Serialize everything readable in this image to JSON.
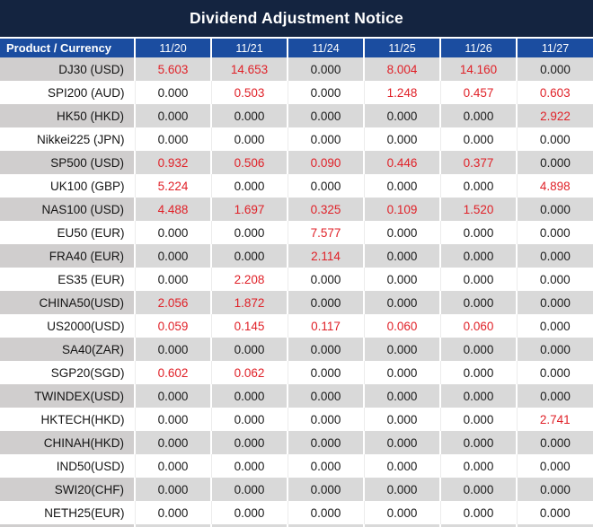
{
  "title": "Dividend Adjustment Notice",
  "colors": {
    "title_bar": "#142440",
    "header_row": "#1b4da0",
    "stripe_row": "#d9d9d9",
    "stripe_label_cell": "#d0cece",
    "value_nonzero": "#e02128",
    "value_zero": "#1a1a1a"
  },
  "chart_data": {
    "type": "table",
    "title": "Dividend Adjustment Notice",
    "columns": [
      "Product / Currency",
      "11/20",
      "11/21",
      "11/24",
      "11/25",
      "11/26",
      "11/27"
    ],
    "rows": [
      {
        "product": "DJ30 (USD)",
        "values": [
          "5.603",
          "14.653",
          "0.000",
          "8.004",
          "14.160",
          "0.000"
        ]
      },
      {
        "product": "SPI200 (AUD)",
        "values": [
          "0.000",
          "0.503",
          "0.000",
          "1.248",
          "0.457",
          "0.603"
        ]
      },
      {
        "product": "HK50 (HKD)",
        "values": [
          "0.000",
          "0.000",
          "0.000",
          "0.000",
          "0.000",
          "2.922"
        ]
      },
      {
        "product": "Nikkei225 (JPN)",
        "values": [
          "0.000",
          "0.000",
          "0.000",
          "0.000",
          "0.000",
          "0.000"
        ]
      },
      {
        "product": "SP500 (USD)",
        "values": [
          "0.932",
          "0.506",
          "0.090",
          "0.446",
          "0.377",
          "0.000"
        ]
      },
      {
        "product": "UK100 (GBP)",
        "values": [
          "5.224",
          "0.000",
          "0.000",
          "0.000",
          "0.000",
          "4.898"
        ]
      },
      {
        "product": "NAS100 (USD)",
        "values": [
          "4.488",
          "1.697",
          "0.325",
          "0.109",
          "1.520",
          "0.000"
        ]
      },
      {
        "product": "EU50 (EUR)",
        "values": [
          "0.000",
          "0.000",
          "7.577",
          "0.000",
          "0.000",
          "0.000"
        ]
      },
      {
        "product": "FRA40 (EUR)",
        "values": [
          "0.000",
          "0.000",
          "2.114",
          "0.000",
          "0.000",
          "0.000"
        ]
      },
      {
        "product": "ES35 (EUR)",
        "values": [
          "0.000",
          "2.208",
          "0.000",
          "0.000",
          "0.000",
          "0.000"
        ]
      },
      {
        "product": "CHINA50(USD)",
        "values": [
          "2.056",
          "1.872",
          "0.000",
          "0.000",
          "0.000",
          "0.000"
        ]
      },
      {
        "product": "US2000(USD)",
        "values": [
          "0.059",
          "0.145",
          "0.117",
          "0.060",
          "0.060",
          "0.000"
        ]
      },
      {
        "product": "SA40(ZAR)",
        "values": [
          "0.000",
          "0.000",
          "0.000",
          "0.000",
          "0.000",
          "0.000"
        ]
      },
      {
        "product": "SGP20(SGD)",
        "values": [
          "0.602",
          "0.062",
          "0.000",
          "0.000",
          "0.000",
          "0.000"
        ]
      },
      {
        "product": "TWINDEX(USD)",
        "values": [
          "0.000",
          "0.000",
          "0.000",
          "0.000",
          "0.000",
          "0.000"
        ]
      },
      {
        "product": "HKTECH(HKD)",
        "values": [
          "0.000",
          "0.000",
          "0.000",
          "0.000",
          "0.000",
          "2.741"
        ]
      },
      {
        "product": "CHINAH(HKD)",
        "values": [
          "0.000",
          "0.000",
          "0.000",
          "0.000",
          "0.000",
          "0.000"
        ]
      },
      {
        "product": "IND50(USD)",
        "values": [
          "0.000",
          "0.000",
          "0.000",
          "0.000",
          "0.000",
          "0.000"
        ]
      },
      {
        "product": "SWI20(CHF)",
        "values": [
          "0.000",
          "0.000",
          "0.000",
          "0.000",
          "0.000",
          "0.000"
        ]
      },
      {
        "product": "NETH25(EUR)",
        "values": [
          "0.000",
          "0.000",
          "0.000",
          "0.000",
          "0.000",
          "0.000"
        ]
      }
    ],
    "layout": {
      "striped_rows": "odd rows shaded gray starting with first data row",
      "nonzero_values_colored_red": true,
      "legend": "none",
      "grid": "column dividers only"
    }
  }
}
